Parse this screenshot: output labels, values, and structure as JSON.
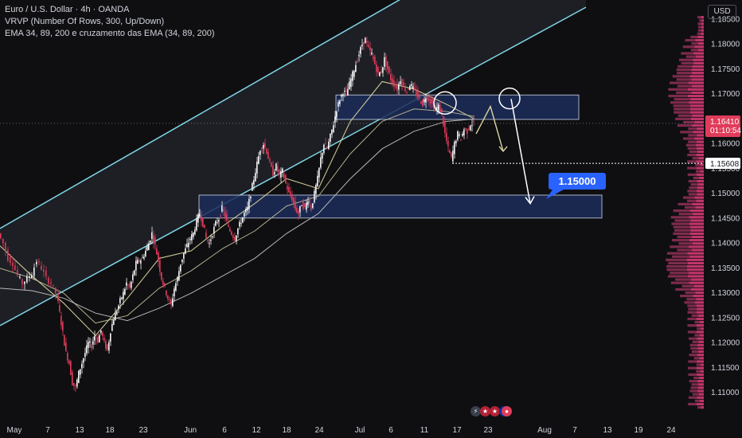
{
  "legend": {
    "symbol": "Euro / U.S. Dollar · 4h · OANDA",
    "indicator_vrvp": "VRVP (Number Of Rows, 300, Up/Down)",
    "indicator_ema": "EMA 34, 89, 200 e cruzamento das EMA (34, 89, 200)"
  },
  "currency_button": "USD",
  "colors": {
    "background": "#0f0f12",
    "up": "#f5f5f5",
    "down": "#e03c5a",
    "channel": "#7fd6e6",
    "zone_fill": "#1c2d5a",
    "zone_border": "#c6cfe6",
    "ema34": "#e0d9a0",
    "ema89": "#c8c29a",
    "ema200": "#c8c8c8",
    "label_blue": "#2962ff",
    "vp_up": "#8a2f53",
    "vp_down": "#e03c7a"
  },
  "chart_data": {
    "type": "candlestick",
    "title": "Euro / U.S. Dollar · 4h · OANDA",
    "y_axis": {
      "min": 1.107,
      "max": 1.186,
      "ticks": [
        "1.18500",
        "1.18000",
        "1.17500",
        "1.17000",
        "1.16500",
        "1.16000",
        "1.15500",
        "1.15000",
        "1.14500",
        "1.14000",
        "1.13500",
        "1.13000",
        "1.12500",
        "1.12000",
        "1.11500",
        "1.11000"
      ]
    },
    "x_axis": {
      "ticks": [
        "May",
        "7",
        "13",
        "18",
        "23",
        "Jun",
        "6",
        "12",
        "18",
        "24",
        "Jul",
        "6",
        "11",
        "17",
        "23",
        "Aug",
        "7",
        "13",
        "19",
        "24"
      ]
    },
    "current_price": "1.16410",
    "countdown": "01:10:54",
    "low_marker": "1.15608",
    "target_label": "1.15000",
    "zones": [
      {
        "name": "upper-zone",
        "y_top": 1.1698,
        "y_bottom": 1.1649
      },
      {
        "name": "lower-zone",
        "y_top": 1.1497,
        "y_bottom": 1.1451
      }
    ],
    "price_path": [
      [
        0,
        1.142
      ],
      [
        6,
        1.14
      ],
      [
        12,
        1.137
      ],
      [
        18,
        1.136
      ],
      [
        24,
        1.1335
      ],
      [
        30,
        1.132
      ],
      [
        36,
        1.133
      ],
      [
        42,
        1.134
      ],
      [
        48,
        1.1365
      ],
      [
        54,
        1.135
      ],
      [
        60,
        1.133
      ],
      [
        66,
        1.132
      ],
      [
        72,
        1.13
      ],
      [
        76,
        1.126
      ],
      [
        80,
        1.122
      ],
      [
        84,
        1.118
      ],
      [
        88,
        1.116
      ],
      [
        92,
        1.112
      ],
      [
        96,
        1.111
      ],
      [
        100,
        1.114
      ],
      [
        104,
        1.116
      ],
      [
        108,
        1.118
      ],
      [
        112,
        1.12
      ],
      [
        116,
        1.1195
      ],
      [
        120,
        1.1215
      ],
      [
        124,
        1.1205
      ],
      [
        128,
        1.1225
      ],
      [
        132,
        1.12
      ],
      [
        136,
        1.1185
      ],
      [
        140,
        1.1225
      ],
      [
        144,
        1.125
      ],
      [
        148,
        1.1265
      ],
      [
        152,
        1.1285
      ],
      [
        156,
        1.13
      ],
      [
        160,
        1.132
      ],
      [
        164,
        1.131
      ],
      [
        168,
        1.1335
      ],
      [
        172,
        1.136
      ],
      [
        176,
        1.1365
      ],
      [
        180,
        1.137
      ],
      [
        184,
        1.1385
      ],
      [
        188,
        1.14
      ],
      [
        192,
        1.142
      ],
      [
        196,
        1.1395
      ],
      [
        200,
        1.1365
      ],
      [
        204,
        1.133
      ],
      [
        208,
        1.131
      ],
      [
        212,
        1.129
      ],
      [
        216,
        1.1275
      ],
      [
        220,
        1.131
      ],
      [
        224,
        1.133
      ],
      [
        228,
        1.136
      ],
      [
        232,
        1.138
      ],
      [
        236,
        1.1395
      ],
      [
        240,
        1.141
      ],
      [
        244,
        1.142
      ],
      [
        248,
        1.1445
      ],
      [
        252,
        1.146
      ],
      [
        256,
        1.144
      ],
      [
        260,
        1.141
      ],
      [
        264,
        1.14
      ],
      [
        268,
        1.142
      ],
      [
        272,
        1.144
      ],
      [
        276,
        1.145
      ],
      [
        280,
        1.147
      ],
      [
        284,
        1.1455
      ],
      [
        288,
        1.143
      ],
      [
        292,
        1.142
      ],
      [
        296,
        1.141
      ],
      [
        300,
        1.143
      ],
      [
        304,
        1.1445
      ],
      [
        308,
        1.146
      ],
      [
        312,
        1.147
      ],
      [
        316,
        1.15
      ],
      [
        320,
        1.153
      ],
      [
        324,
        1.156
      ],
      [
        328,
        1.159
      ],
      [
        332,
        1.16
      ],
      [
        336,
        1.1585
      ],
      [
        340,
        1.156
      ],
      [
        344,
        1.154
      ],
      [
        348,
        1.1555
      ],
      [
        352,
        1.1535
      ],
      [
        356,
        1.1545
      ],
      [
        360,
        1.152
      ],
      [
        364,
        1.15
      ],
      [
        368,
        1.149
      ],
      [
        372,
        1.147
      ],
      [
        376,
        1.146
      ],
      [
        380,
        1.148
      ],
      [
        384,
        1.147
      ],
      [
        388,
        1.149
      ],
      [
        392,
        1.147
      ],
      [
        396,
        1.15
      ],
      [
        400,
        1.153
      ],
      [
        404,
        1.157
      ],
      [
        408,
        1.16
      ],
      [
        412,
        1.159
      ],
      [
        416,
        1.1615
      ],
      [
        420,
        1.164
      ],
      [
        424,
        1.167
      ],
      [
        428,
        1.169
      ],
      [
        432,
        1.1705
      ],
      [
        436,
        1.17
      ],
      [
        440,
        1.172
      ],
      [
        444,
        1.174
      ],
      [
        448,
        1.176
      ],
      [
        452,
        1.178
      ],
      [
        456,
        1.18
      ],
      [
        460,
        1.181
      ],
      [
        464,
        1.179
      ],
      [
        468,
        1.178
      ],
      [
        472,
        1.176
      ],
      [
        476,
        1.174
      ],
      [
        480,
        1.1745
      ],
      [
        484,
        1.177
      ],
      [
        488,
        1.175
      ],
      [
        492,
        1.173
      ],
      [
        496,
        1.172
      ],
      [
        500,
        1.171
      ],
      [
        504,
        1.173
      ],
      [
        508,
        1.1715
      ],
      [
        512,
        1.1705
      ],
      [
        516,
        1.172
      ],
      [
        520,
        1.171
      ],
      [
        524,
        1.17
      ],
      [
        528,
        1.169
      ],
      [
        532,
        1.168
      ],
      [
        536,
        1.1695
      ],
      [
        540,
        1.169
      ],
      [
        544,
        1.168
      ],
      [
        548,
        1.167
      ],
      [
        552,
        1.1675
      ],
      [
        556,
        1.166
      ],
      [
        560,
        1.162
      ],
      [
        564,
        1.159
      ],
      [
        568,
        1.157
      ],
      [
        572,
        1.16
      ],
      [
        576,
        1.162
      ],
      [
        580,
        1.161
      ],
      [
        584,
        1.163
      ],
      [
        588,
        1.1625
      ],
      [
        592,
        1.164
      ],
      [
        596,
        1.1641
      ]
    ],
    "ema34": [
      [
        0,
        1.1395
      ],
      [
        40,
        1.1335
      ],
      [
        80,
        1.128
      ],
      [
        120,
        1.1215
      ],
      [
        160,
        1.129
      ],
      [
        200,
        1.137
      ],
      [
        240,
        1.1385
      ],
      [
        280,
        1.1435
      ],
      [
        320,
        1.148
      ],
      [
        360,
        1.153
      ],
      [
        400,
        1.151
      ],
      [
        440,
        1.1645
      ],
      [
        480,
        1.1725
      ],
      [
        520,
        1.171
      ],
      [
        560,
        1.168
      ],
      [
        596,
        1.165
      ]
    ],
    "ema89": [
      [
        0,
        1.135
      ],
      [
        40,
        1.133
      ],
      [
        80,
        1.13
      ],
      [
        120,
        1.124
      ],
      [
        160,
        1.1255
      ],
      [
        200,
        1.131
      ],
      [
        240,
        1.1345
      ],
      [
        280,
        1.139
      ],
      [
        320,
        1.1425
      ],
      [
        360,
        1.1475
      ],
      [
        400,
        1.1495
      ],
      [
        440,
        1.158
      ],
      [
        480,
        1.1645
      ],
      [
        520,
        1.167
      ],
      [
        560,
        1.1665
      ],
      [
        596,
        1.1655
      ]
    ],
    "ema200": [
      [
        0,
        1.131
      ],
      [
        40,
        1.1305
      ],
      [
        80,
        1.129
      ],
      [
        120,
        1.126
      ],
      [
        160,
        1.1245
      ],
      [
        200,
        1.127
      ],
      [
        240,
        1.13
      ],
      [
        280,
        1.1335
      ],
      [
        320,
        1.137
      ],
      [
        360,
        1.142
      ],
      [
        400,
        1.146
      ],
      [
        440,
        1.153
      ],
      [
        480,
        1.159
      ],
      [
        520,
        1.1625
      ],
      [
        560,
        1.1645
      ],
      [
        596,
        1.165
      ]
    ],
    "channel": {
      "lower": [
        [
          0,
          1.1235
        ],
        [
          570,
          1.173
        ]
      ],
      "upper": [
        [
          0,
          1.143
        ],
        [
          470,
          1.186
        ]
      ]
    },
    "projection_yellow": [
      [
        598,
        1.162
      ],
      [
        616,
        1.1675
      ],
      [
        632,
        1.1585
      ]
    ],
    "projection_white": [
      [
        642,
        1.169
      ],
      [
        666,
        1.148
      ]
    ],
    "volume_profile_note": "Up/Down volume profile drawn on right"
  }
}
